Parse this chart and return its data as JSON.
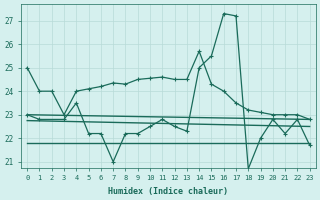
{
  "zigzag_x": [
    0,
    1,
    3,
    4,
    5,
    6,
    7,
    8,
    9,
    10,
    11,
    12,
    13,
    14,
    15,
    16,
    17,
    18,
    19,
    20,
    21,
    22,
    23
  ],
  "zigzag_y": [
    23.0,
    22.8,
    22.8,
    23.5,
    22.2,
    22.2,
    21.0,
    22.2,
    22.2,
    22.5,
    22.8,
    22.5,
    22.3,
    25.0,
    25.5,
    27.3,
    27.2,
    20.7,
    22.0,
    22.8,
    22.2,
    22.8,
    21.7
  ],
  "smooth_x": [
    0,
    1,
    2,
    3,
    4,
    5,
    6,
    7,
    8,
    9,
    10,
    11,
    12,
    13,
    14,
    15,
    16,
    17,
    18,
    19,
    20,
    21,
    22,
    23
  ],
  "smooth_y": [
    25.0,
    24.0,
    24.0,
    23.0,
    24.0,
    24.1,
    24.2,
    24.35,
    24.3,
    24.5,
    24.55,
    24.6,
    24.5,
    24.5,
    25.7,
    24.3,
    24.0,
    23.5,
    23.2,
    23.1,
    23.0,
    23.0,
    23.0,
    22.8
  ],
  "trend1_x": [
    0,
    23
  ],
  "trend1_y": [
    23.0,
    22.8
  ],
  "trend2_x": [
    0,
    23
  ],
  "trend2_y": [
    22.75,
    22.5
  ],
  "trend3_x": [
    0,
    23
  ],
  "trend3_y": [
    21.8,
    21.8
  ],
  "ylim": [
    20.75,
    27.7
  ],
  "yticks": [
    21,
    22,
    23,
    24,
    25,
    26,
    27
  ],
  "xticks": [
    0,
    1,
    2,
    3,
    4,
    5,
    6,
    7,
    8,
    9,
    10,
    11,
    12,
    13,
    14,
    15,
    16,
    17,
    18,
    19,
    20,
    21,
    22,
    23
  ],
  "xlabel": "Humidex (Indice chaleur)",
  "bg_color": "#d5f0ee",
  "line_color": "#1a6b5a",
  "grid_color": "#b8dbd8"
}
